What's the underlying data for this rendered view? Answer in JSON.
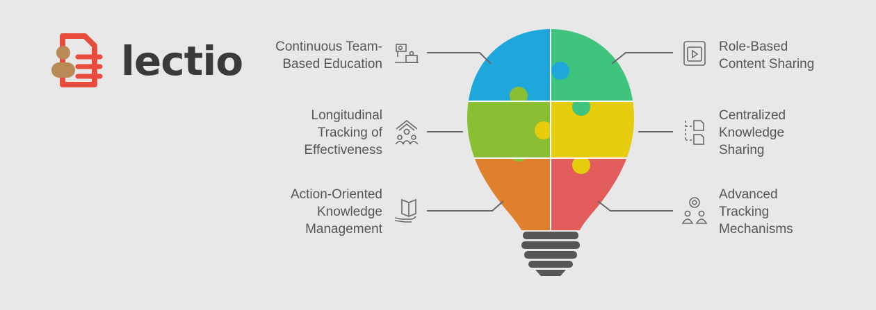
{
  "brand": {
    "name": "lectio",
    "colors": {
      "red": "#e74c3c",
      "tan": "#b98a56",
      "text": "#3a3a3a"
    }
  },
  "diagram": {
    "items": [
      {
        "side": "left",
        "text": "Continuous Team-\nBased Education",
        "icon": "team-education-icon",
        "color": "#1ea7db"
      },
      {
        "side": "left",
        "text": "Longitudinal\nTracking of\nEffectiveness",
        "icon": "growth-tracking-icon",
        "color": "#8bbf33"
      },
      {
        "side": "left",
        "text": "Action-Oriented\nKnowledge\nManagement",
        "icon": "book-hand-icon",
        "color": "#e07f2c"
      },
      {
        "side": "right",
        "text": "Role-Based\nContent Sharing",
        "icon": "video-content-icon",
        "color": "#3ec47c"
      },
      {
        "side": "right",
        "text": "Centralized\nKnowledge\nSharing",
        "icon": "document-hierarchy-icon",
        "color": "#e5cc0d"
      },
      {
        "side": "right",
        "text": "Advanced\nTracking\nMechanisms",
        "icon": "people-sync-icon",
        "color": "#e35c5c"
      }
    ]
  }
}
